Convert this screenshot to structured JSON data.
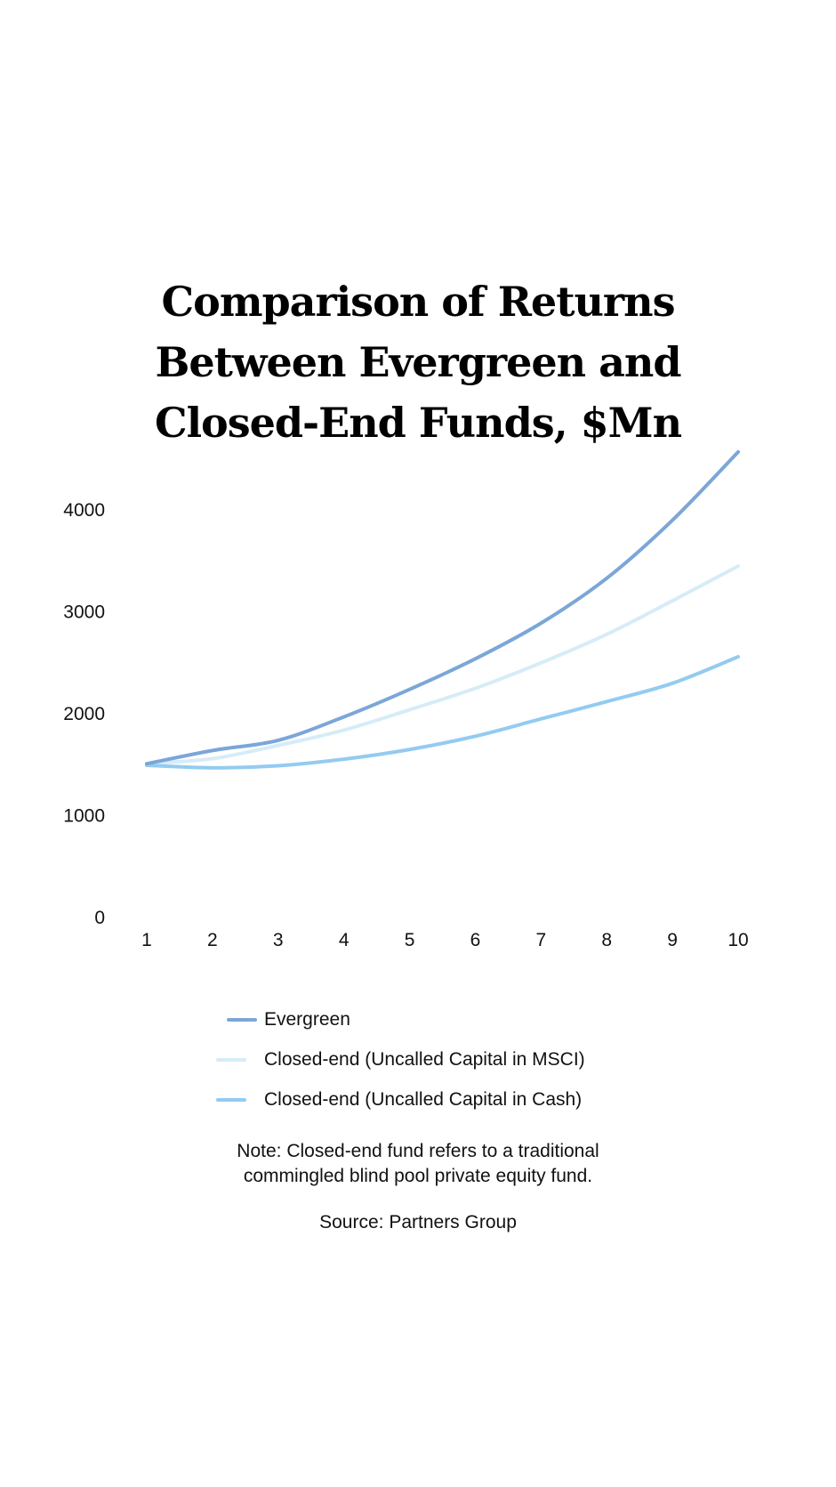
{
  "chart_data": {
    "type": "line",
    "title_lines": [
      "Comparison of Returns",
      "Between Evergreen and",
      "Closed-End Funds, $Mn"
    ],
    "x": [
      1,
      2,
      3,
      4,
      5,
      6,
      7,
      8,
      9,
      10
    ],
    "x_ticks": [
      "1",
      "2",
      "3",
      "4",
      "5",
      "6",
      "7",
      "8",
      "9",
      "10"
    ],
    "y_ticks": [
      "0",
      "1000",
      "2000",
      "3000",
      "4000"
    ],
    "ylim": [
      0,
      4600
    ],
    "grid": false,
    "legend_position": "bottom",
    "series": [
      {
        "name": "Evergreen",
        "color": "#7ba6d8",
        "values": [
          1500,
          1630,
          1730,
          1960,
          2230,
          2530,
          2880,
          3320,
          3890,
          4560
        ]
      },
      {
        "name": "Closed-end (Uncalled Capital in MSCI)",
        "color": "#d6ecf8",
        "values": [
          1500,
          1550,
          1680,
          1830,
          2030,
          2240,
          2490,
          2770,
          3100,
          3440
        ]
      },
      {
        "name": "Closed-end (Uncalled Capital in Cash)",
        "color": "#93cbf1",
        "values": [
          1485,
          1460,
          1480,
          1545,
          1640,
          1770,
          1940,
          2110,
          2290,
          2550
        ]
      }
    ]
  },
  "note": "Note: Closed-end fund refers to a traditional commingled blind pool private equity fund.",
  "note_lines": [
    "Note: Closed-end fund refers to a traditional",
    "commingled blind pool private equity fund."
  ],
  "source": "Source: Partners Group"
}
